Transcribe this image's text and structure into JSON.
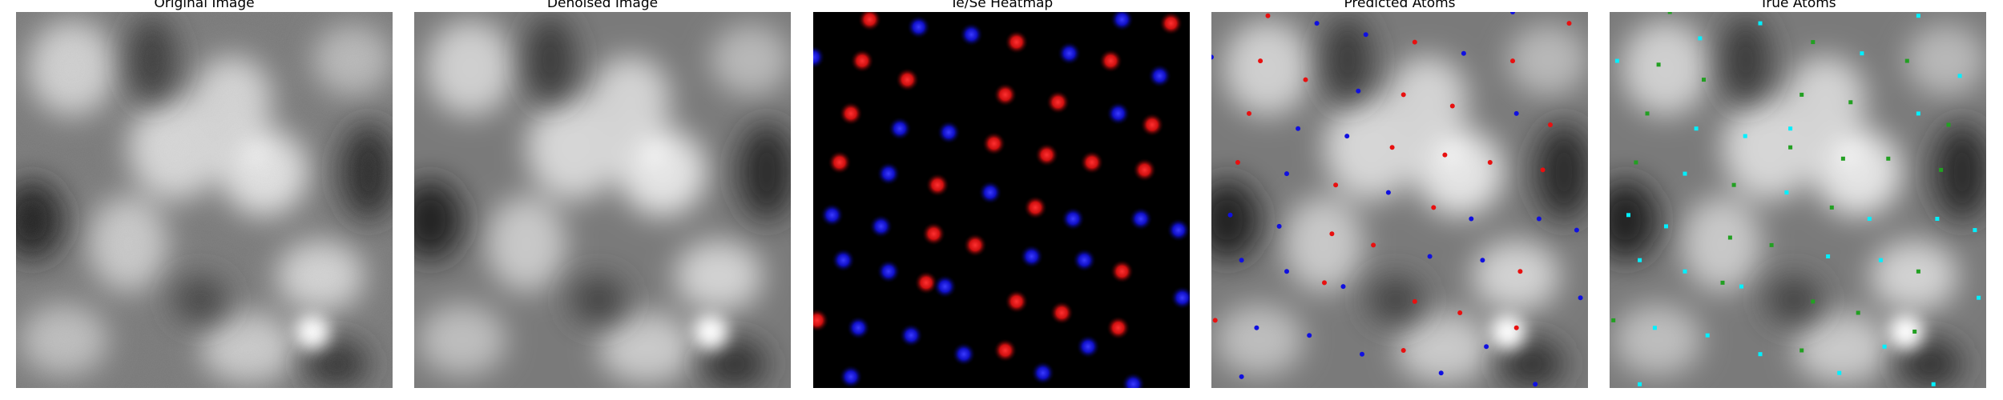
{
  "figure": {
    "panels": [
      {
        "id": "original",
        "title": "Original Image"
      },
      {
        "id": "denoised",
        "title": "Denoised Image"
      },
      {
        "id": "heatmap",
        "title": "Te/Se Heatmap"
      },
      {
        "id": "predicted",
        "title": "Predicted Atoms"
      },
      {
        "id": "true",
        "title": "True Atoms"
      }
    ]
  },
  "colors": {
    "background": "#ffffff",
    "heatmap_background": "#000000",
    "te_red": "#ff2020",
    "se_blue": "#2222ff",
    "predicted_red": "#e81010",
    "predicted_blue": "#1010e0",
    "true_cyan": "#00f0ff",
    "true_green": "#22a022"
  },
  "heatmap": {
    "red": [
      [
        0.15,
        0.02
      ],
      [
        0.95,
        0.03
      ],
      [
        0.54,
        0.08
      ],
      [
        0.13,
        0.13
      ],
      [
        0.79,
        0.13
      ],
      [
        0.25,
        0.18
      ],
      [
        0.51,
        0.22
      ],
      [
        0.65,
        0.24
      ],
      [
        0.1,
        0.27
      ],
      [
        0.9,
        0.3
      ],
      [
        0.48,
        0.35
      ],
      [
        0.62,
        0.38
      ],
      [
        0.07,
        0.4
      ],
      [
        0.74,
        0.4
      ],
      [
        0.88,
        0.42
      ],
      [
        0.33,
        0.46
      ],
      [
        0.59,
        0.52
      ],
      [
        0.32,
        0.59
      ],
      [
        0.43,
        0.62
      ],
      [
        0.3,
        0.72
      ],
      [
        0.82,
        0.69
      ],
      [
        0.54,
        0.77
      ],
      [
        0.66,
        0.8
      ],
      [
        0.01,
        0.82
      ],
      [
        0.81,
        0.84
      ],
      [
        0.51,
        0.9
      ]
    ],
    "blue": [
      [
        0.28,
        0.04
      ],
      [
        0.42,
        0.06
      ],
      [
        0.82,
        0.02
      ],
      [
        0.68,
        0.11
      ],
      [
        0.0,
        0.12
      ],
      [
        0.92,
        0.17
      ],
      [
        0.23,
        0.31
      ],
      [
        0.36,
        0.32
      ],
      [
        0.81,
        0.27
      ],
      [
        0.2,
        0.43
      ],
      [
        0.47,
        0.48
      ],
      [
        0.05,
        0.54
      ],
      [
        0.69,
        0.55
      ],
      [
        0.87,
        0.55
      ],
      [
        0.18,
        0.57
      ],
      [
        0.97,
        0.58
      ],
      [
        0.08,
        0.66
      ],
      [
        0.2,
        0.69
      ],
      [
        0.58,
        0.65
      ],
      [
        0.72,
        0.66
      ],
      [
        0.35,
        0.73
      ],
      [
        0.98,
        0.76
      ],
      [
        0.12,
        0.84
      ],
      [
        0.26,
        0.86
      ],
      [
        0.73,
        0.89
      ],
      [
        0.4,
        0.91
      ],
      [
        0.61,
        0.96
      ],
      [
        0.85,
        0.99
      ],
      [
        0.1,
        0.97
      ]
    ]
  },
  "predicted": {
    "red": [
      [
        0.15,
        0.01
      ],
      [
        0.95,
        0.03
      ],
      [
        0.54,
        0.08
      ],
      [
        0.13,
        0.13
      ],
      [
        0.25,
        0.18
      ],
      [
        0.8,
        0.13
      ],
      [
        0.51,
        0.22
      ],
      [
        0.64,
        0.25
      ],
      [
        0.1,
        0.27
      ],
      [
        0.9,
        0.3
      ],
      [
        0.48,
        0.36
      ],
      [
        0.62,
        0.38
      ],
      [
        0.07,
        0.4
      ],
      [
        0.74,
        0.4
      ],
      [
        0.88,
        0.42
      ],
      [
        0.33,
        0.46
      ],
      [
        0.59,
        0.52
      ],
      [
        0.32,
        0.59
      ],
      [
        0.43,
        0.62
      ],
      [
        0.3,
        0.72
      ],
      [
        0.82,
        0.69
      ],
      [
        0.54,
        0.77
      ],
      [
        0.66,
        0.8
      ],
      [
        0.01,
        0.82
      ],
      [
        0.81,
        0.84
      ],
      [
        0.51,
        0.9
      ]
    ],
    "blue": [
      [
        0.28,
        0.03
      ],
      [
        0.41,
        0.06
      ],
      [
        0.8,
        0.0
      ],
      [
        0.67,
        0.11
      ],
      [
        0.0,
        0.12
      ],
      [
        0.39,
        0.21
      ],
      [
        0.23,
        0.31
      ],
      [
        0.36,
        0.33
      ],
      [
        0.81,
        0.27
      ],
      [
        0.2,
        0.43
      ],
      [
        0.47,
        0.48
      ],
      [
        0.05,
        0.54
      ],
      [
        0.69,
        0.55
      ],
      [
        0.87,
        0.55
      ],
      [
        0.18,
        0.57
      ],
      [
        0.97,
        0.58
      ],
      [
        0.08,
        0.66
      ],
      [
        0.2,
        0.69
      ],
      [
        0.58,
        0.65
      ],
      [
        0.72,
        0.66
      ],
      [
        0.35,
        0.73
      ],
      [
        0.98,
        0.76
      ],
      [
        0.12,
        0.84
      ],
      [
        0.26,
        0.86
      ],
      [
        0.73,
        0.89
      ],
      [
        0.4,
        0.91
      ],
      [
        0.61,
        0.96
      ],
      [
        0.86,
        0.99
      ],
      [
        0.08,
        0.97
      ]
    ]
  },
  "true_atoms": {
    "cyan": [
      [
        0.02,
        0.13
      ],
      [
        0.4,
        0.03
      ],
      [
        0.82,
        0.01
      ],
      [
        0.67,
        0.11
      ],
      [
        0.24,
        0.07
      ],
      [
        0.93,
        0.17
      ],
      [
        0.48,
        0.31
      ],
      [
        0.23,
        0.31
      ],
      [
        0.36,
        0.33
      ],
      [
        0.82,
        0.27
      ],
      [
        0.2,
        0.43
      ],
      [
        0.47,
        0.48
      ],
      [
        0.05,
        0.54
      ],
      [
        0.69,
        0.55
      ],
      [
        0.87,
        0.55
      ],
      [
        0.15,
        0.57
      ],
      [
        0.97,
        0.58
      ],
      [
        0.08,
        0.66
      ],
      [
        0.2,
        0.69
      ],
      [
        0.58,
        0.65
      ],
      [
        0.72,
        0.66
      ],
      [
        0.35,
        0.73
      ],
      [
        0.98,
        0.76
      ],
      [
        0.12,
        0.84
      ],
      [
        0.26,
        0.86
      ],
      [
        0.73,
        0.89
      ],
      [
        0.4,
        0.91
      ],
      [
        0.61,
        0.96
      ],
      [
        0.86,
        0.99
      ],
      [
        0.08,
        0.99
      ]
    ],
    "green": [
      [
        0.16,
        0.0
      ],
      [
        0.54,
        0.08
      ],
      [
        0.13,
        0.14
      ],
      [
        0.25,
        0.18
      ],
      [
        0.79,
        0.13
      ],
      [
        0.51,
        0.22
      ],
      [
        0.64,
        0.24
      ],
      [
        0.1,
        0.27
      ],
      [
        0.9,
        0.3
      ],
      [
        0.48,
        0.36
      ],
      [
        0.62,
        0.39
      ],
      [
        0.07,
        0.4
      ],
      [
        0.74,
        0.39
      ],
      [
        0.88,
        0.42
      ],
      [
        0.33,
        0.46
      ],
      [
        0.59,
        0.52
      ],
      [
        0.32,
        0.6
      ],
      [
        0.43,
        0.62
      ],
      [
        0.3,
        0.72
      ],
      [
        0.82,
        0.69
      ],
      [
        0.54,
        0.77
      ],
      [
        0.66,
        0.8
      ],
      [
        0.01,
        0.82
      ],
      [
        0.81,
        0.85
      ],
      [
        0.51,
        0.9
      ]
    ]
  }
}
